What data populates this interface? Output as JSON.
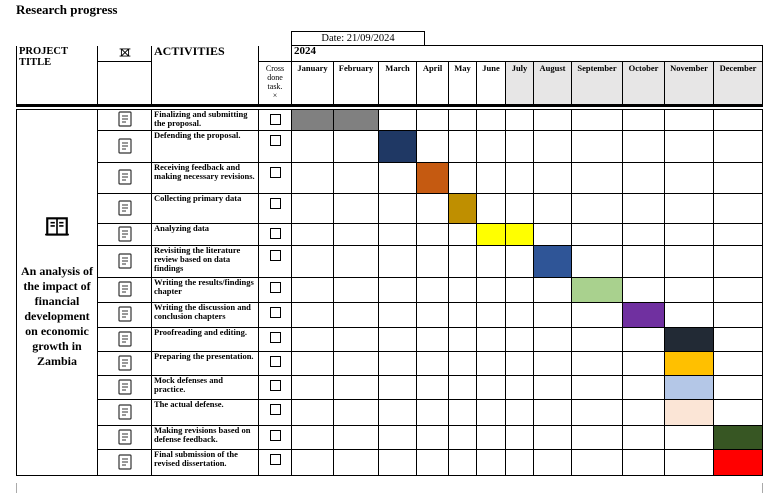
{
  "heading": "Research progress",
  "header": {
    "project_title": "PROJECT TITLE",
    "activities": "ACTIVITIES",
    "date": "Date: 21/09/2024",
    "year": "2024",
    "cross_done": "Cross done task.",
    "cross_mark": "×",
    "months": [
      "January",
      "February",
      "March",
      "April",
      "May",
      "June",
      "July",
      "August",
      "September",
      "October",
      "November",
      "December"
    ]
  },
  "project": {
    "title": "An analysis of the impact of financial development on economic growth in Zambia",
    "icon": "book-icon"
  },
  "activities": [
    {
      "label": "Finalizing and submitting the proposal.",
      "icon": "clipboard-edit-icon",
      "months": [
        "January",
        "February"
      ],
      "color": "#808080"
    },
    {
      "label": "Defending the proposal.",
      "icon": "meeting-icon",
      "months": [
        "March"
      ],
      "color": "#1f3864"
    },
    {
      "label": "Receiving feedback and making necessary revisions.",
      "icon": "feedback-icon",
      "months": [
        "April"
      ],
      "color": "#c55a11"
    },
    {
      "label": "Collecting primary data",
      "icon": "people-search-icon",
      "months": [
        "May"
      ],
      "color": "#bf8f00"
    },
    {
      "label": "Analyzing data",
      "icon": "bar-chart-icon",
      "months": [
        "June",
        "July"
      ],
      "color": "#ffff00"
    },
    {
      "label": "Revisiting the literature review based on data findings",
      "icon": "book-stack-icon",
      "months": [
        "August"
      ],
      "color": "#2f5597"
    },
    {
      "label": "Writing the results/findings chapter",
      "icon": "clipboard-pen-icon",
      "months": [
        "September"
      ],
      "color": "#a9d18e"
    },
    {
      "label": "Writing the discussion and conclusion chapters",
      "icon": "desk-icon",
      "months": [
        "October"
      ],
      "color": "#7030a0"
    },
    {
      "label": "Proofreading and editing.",
      "icon": "signature-icon",
      "months": [
        "November"
      ],
      "color": "#222a35"
    },
    {
      "label": "Preparing the presentation.",
      "icon": "idea-team-icon",
      "months": [
        "November"
      ],
      "color": "#ffc000"
    },
    {
      "label": "Mock defenses and practice.",
      "icon": "feedback-icon",
      "months": [
        "November"
      ],
      "color": "#b4c7e7"
    },
    {
      "label": "The actual defense.",
      "icon": "conference-table-icon",
      "months": [
        "November"
      ],
      "color": "#fbe5d6"
    },
    {
      "label": "Making revisions based on defense feedback.",
      "icon": "checklist-icon",
      "months": [
        "December"
      ],
      "color": "#375623"
    },
    {
      "label": "Final submission of the revised dissertation.",
      "icon": "handshake-icon",
      "months": [
        "December"
      ],
      "color": "#ff0000"
    }
  ]
}
